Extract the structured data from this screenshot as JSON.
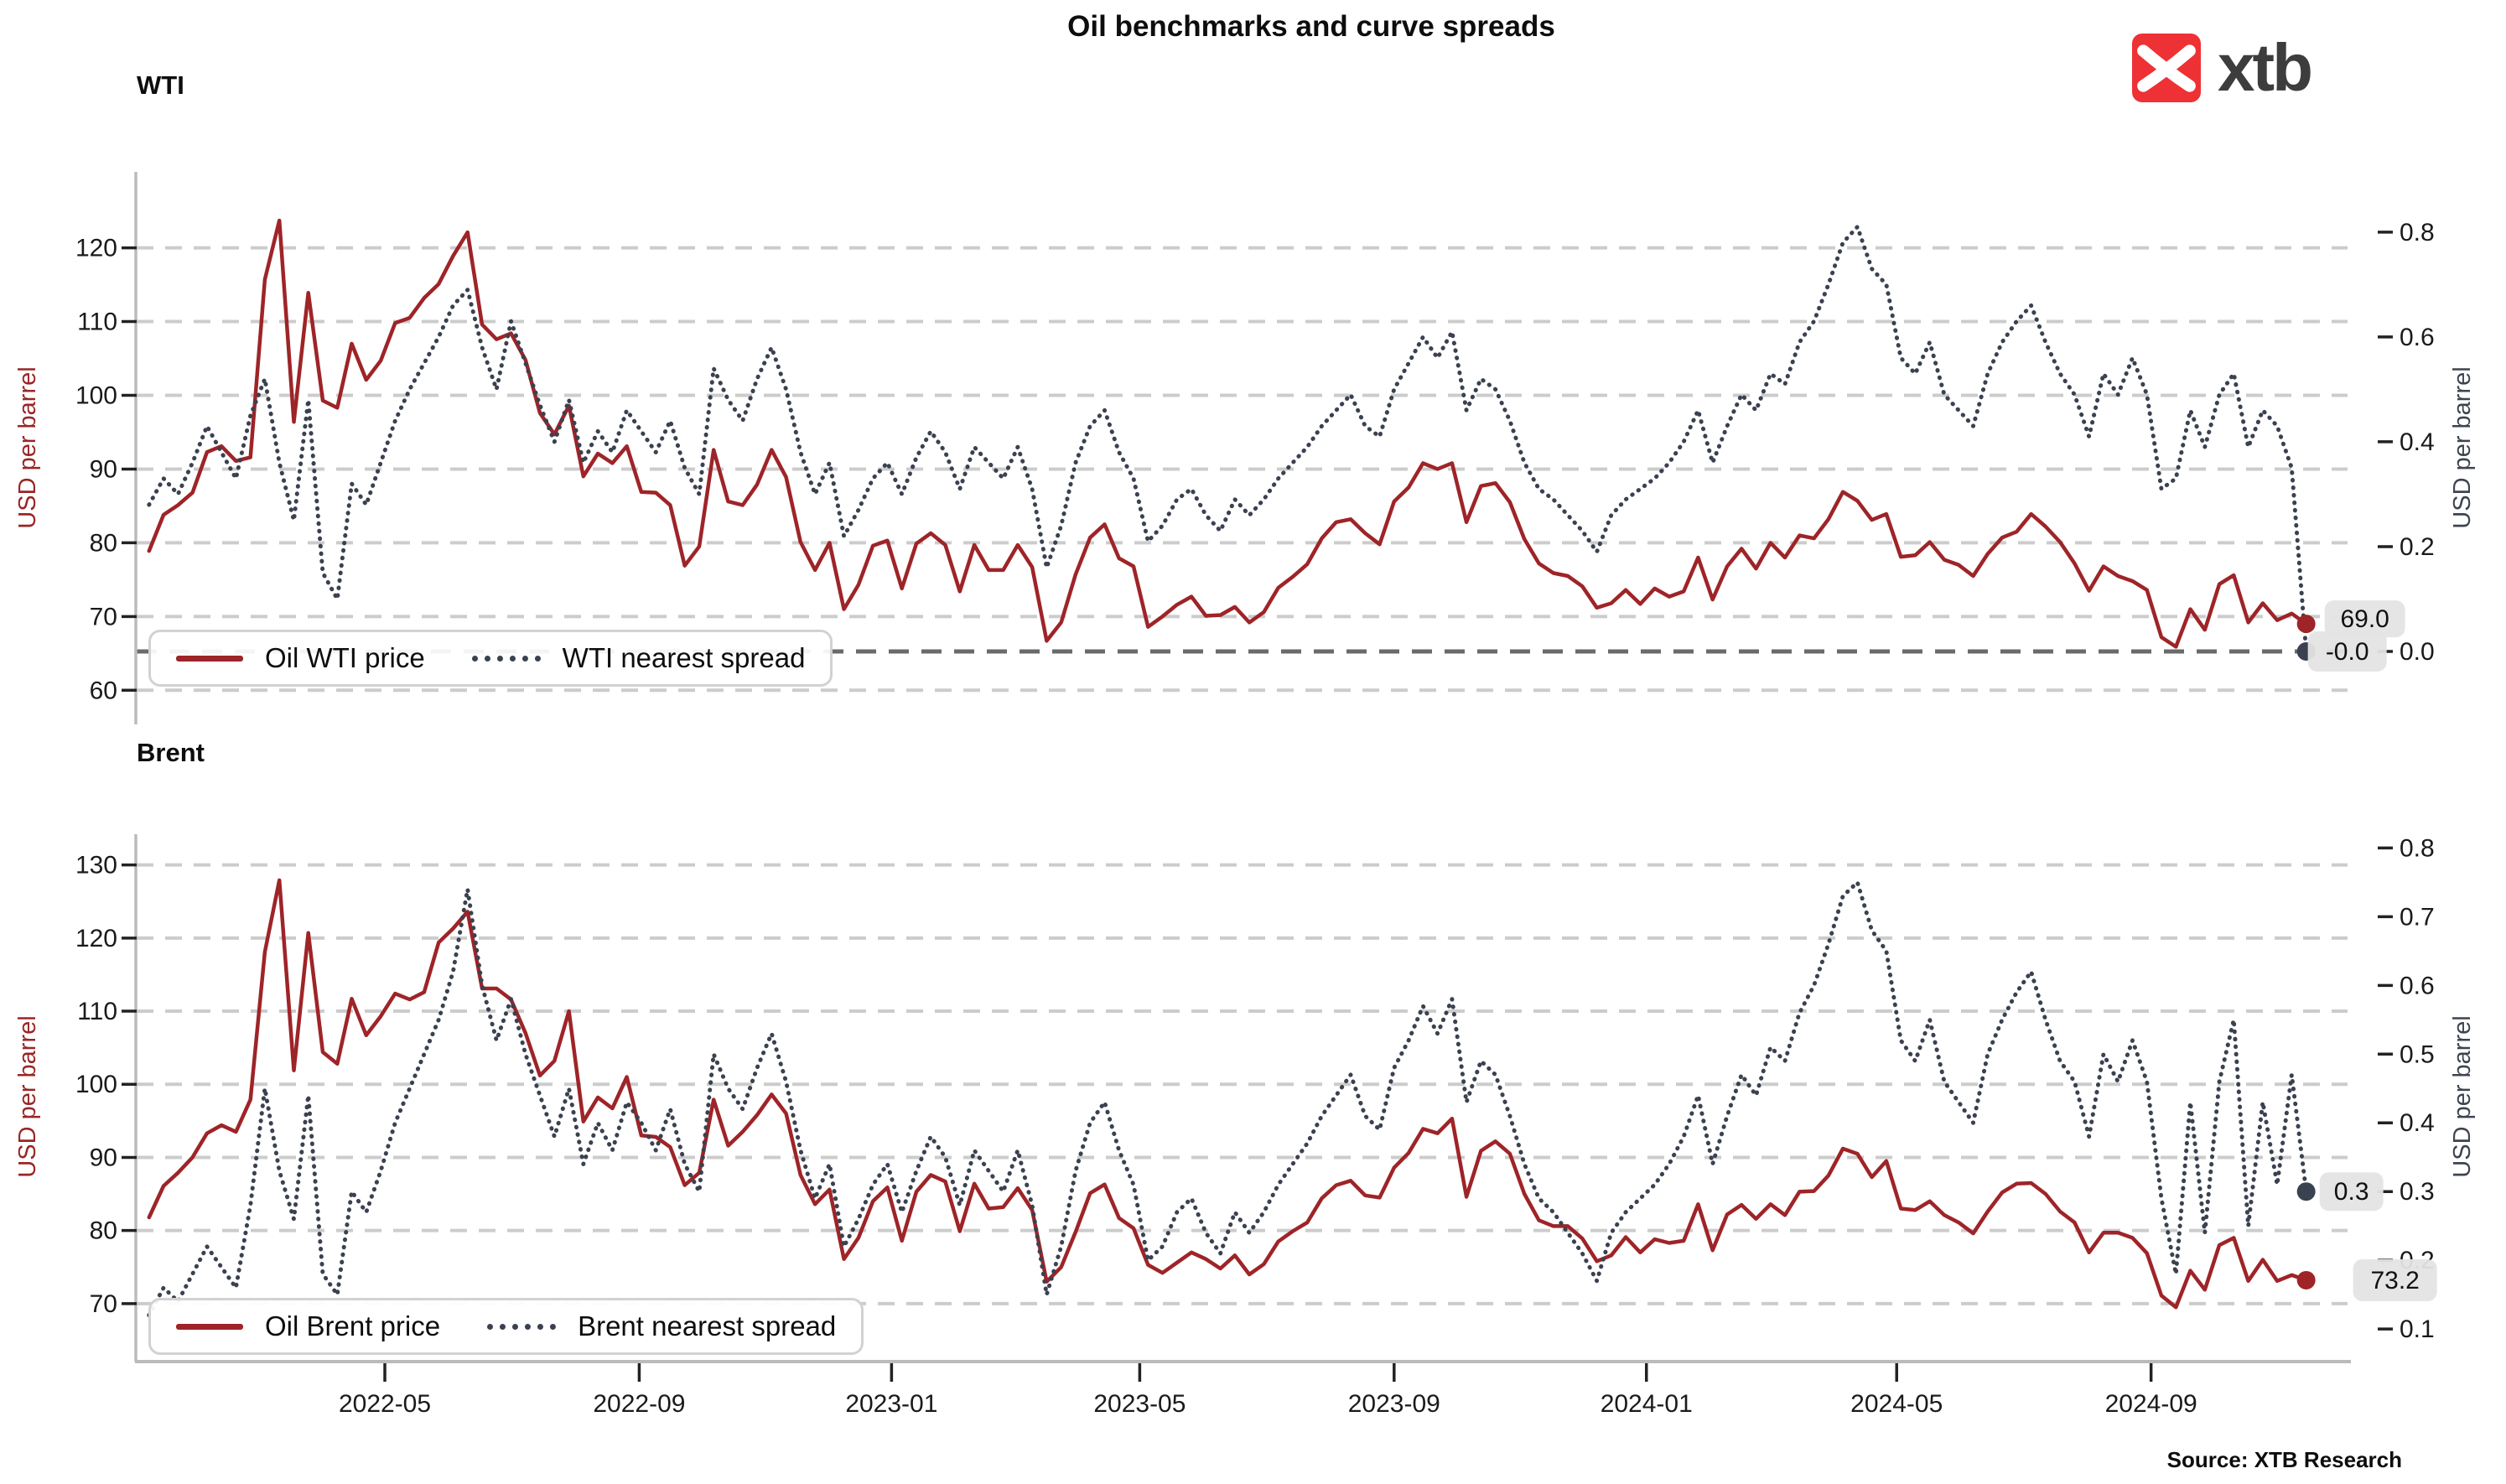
{
  "page": {
    "title": "Oil benchmarks and curve spreads",
    "source": "Source: XTB Research",
    "logo_text": "xtb"
  },
  "colors": {
    "price": "#9e2428",
    "spread": "#3a4150",
    "grid": "#cccccc",
    "zero_line": "#6a6a6a",
    "spine": "#bbbbbb",
    "tick_text": "#1a1a1a",
    "left_axis_label": "#992626",
    "right_axis_label": "#3d4450",
    "annotation_bg": "#e4e4e4",
    "annotation_text": "#111111",
    "logo_red": "#ee3134",
    "logo_text_color": "#3d3d3d"
  },
  "chart_data": [
    {
      "type": "line",
      "title": "WTI",
      "ylabel_left": "USD per barrel",
      "ylabel_right": "USD per barrel",
      "x_start": "2022-01-07",
      "x_step_days": 7,
      "xlim": [
        "2022-01-01",
        "2024-12-05"
      ],
      "x_tick_labels": [
        "2022-05",
        "2022-09",
        "2023-01",
        "2023-05",
        "2023-09",
        "2024-01",
        "2024-05",
        "2024-09"
      ],
      "show_x_tick_labels": false,
      "ylim_left": [
        55.6,
        130.3
      ],
      "ylim_right": [
        -0.136,
        0.915
      ],
      "yticks_left": [
        "120",
        "110",
        "100",
        "90",
        "80",
        "70",
        "60"
      ],
      "yticks_right": [
        "0.8",
        "0.6",
        "0.4",
        "0.2",
        "0.0"
      ],
      "grid": true,
      "zero_spread_line": true,
      "legend_position": "lower left",
      "series": [
        {
          "name": "Oil WTI price",
          "style": "solid",
          "axis": "left",
          "values": [
            78.9,
            83.8,
            85.1,
            86.8,
            92.3,
            93.1,
            91.1,
            91.6,
            115.7,
            123.7,
            96.4,
            113.9,
            99.3,
            98.3,
            107.0,
            102.1,
            104.7,
            109.8,
            110.5,
            113.2,
            115.1,
            118.9,
            122.1,
            109.6,
            107.6,
            108.4,
            104.8,
            97.6,
            94.7,
            98.6,
            89.0,
            92.1,
            90.8,
            93.1,
            86.9,
            86.8,
            85.1,
            76.9,
            79.5,
            92.6,
            85.6,
            85.1,
            87.9,
            92.6,
            88.9,
            80.1,
            76.3,
            80.0,
            71.0,
            74.3,
            79.6,
            80.3,
            73.8,
            79.9,
            81.3,
            79.7,
            73.4,
            79.7,
            76.3,
            76.3,
            79.7,
            76.7,
            66.7,
            69.2,
            75.7,
            80.7,
            82.5,
            77.9,
            76.8,
            68.6,
            70.0,
            71.6,
            72.7,
            70.1,
            70.2,
            71.3,
            69.2,
            70.6,
            73.9,
            75.4,
            77.1,
            80.6,
            82.8,
            83.2,
            81.3,
            79.8,
            85.6,
            87.5,
            90.8,
            90.0,
            90.8,
            82.8,
            87.7,
            88.1,
            85.5,
            80.5,
            77.2,
            75.9,
            75.5,
            74.1,
            71.2,
            71.8,
            73.6,
            71.7,
            73.8,
            72.7,
            73.4,
            78.0,
            72.3,
            76.8,
            79.2,
            76.5,
            80.0,
            78.0,
            81.0,
            80.6,
            83.2,
            86.9,
            85.7,
            83.1,
            83.9,
            78.1,
            78.3,
            80.1,
            77.7,
            77.0,
            75.5,
            78.5,
            80.7,
            81.5,
            83.9,
            82.2,
            80.1,
            77.2,
            73.5,
            76.8,
            75.5,
            74.8,
            73.6,
            67.2,
            65.9,
            71.0,
            68.2,
            74.4,
            75.6,
            69.2,
            71.8,
            69.5,
            70.4,
            69.0
          ]
        },
        {
          "name": "WTI nearest spread",
          "style": "dotted",
          "axis": "right",
          "values": [
            0.28,
            0.33,
            0.3,
            0.36,
            0.43,
            0.38,
            0.33,
            0.45,
            0.52,
            0.36,
            0.25,
            0.48,
            0.15,
            0.1,
            0.32,
            0.28,
            0.36,
            0.44,
            0.5,
            0.55,
            0.6,
            0.66,
            0.69,
            0.58,
            0.5,
            0.63,
            0.55,
            0.47,
            0.4,
            0.48,
            0.36,
            0.42,
            0.38,
            0.46,
            0.42,
            0.38,
            0.44,
            0.35,
            0.3,
            0.54,
            0.48,
            0.44,
            0.52,
            0.58,
            0.5,
            0.38,
            0.3,
            0.36,
            0.22,
            0.27,
            0.33,
            0.36,
            0.3,
            0.37,
            0.42,
            0.38,
            0.31,
            0.39,
            0.36,
            0.33,
            0.39,
            0.31,
            0.16,
            0.24,
            0.36,
            0.43,
            0.46,
            0.38,
            0.33,
            0.21,
            0.24,
            0.29,
            0.31,
            0.26,
            0.23,
            0.29,
            0.26,
            0.29,
            0.33,
            0.36,
            0.39,
            0.43,
            0.46,
            0.49,
            0.43,
            0.41,
            0.5,
            0.55,
            0.6,
            0.56,
            0.61,
            0.46,
            0.52,
            0.5,
            0.44,
            0.36,
            0.31,
            0.29,
            0.26,
            0.23,
            0.19,
            0.26,
            0.29,
            0.31,
            0.33,
            0.36,
            0.4,
            0.46,
            0.36,
            0.43,
            0.49,
            0.46,
            0.53,
            0.51,
            0.59,
            0.63,
            0.7,
            0.78,
            0.81,
            0.73,
            0.7,
            0.56,
            0.53,
            0.59,
            0.49,
            0.46,
            0.43,
            0.53,
            0.59,
            0.63,
            0.66,
            0.59,
            0.53,
            0.49,
            0.41,
            0.53,
            0.49,
            0.56,
            0.49,
            0.31,
            0.33,
            0.46,
            0.39,
            0.49,
            0.53,
            0.39,
            0.46,
            0.43,
            0.35,
            0.0
          ]
        }
      ],
      "end_labels": [
        {
          "text": "69.0",
          "series": 0
        },
        {
          "text": "-0.0",
          "series": 1
        }
      ]
    },
    {
      "type": "line",
      "title": "Brent",
      "ylabel_left": "USD per barrel",
      "ylabel_right": "USD per barrel",
      "x_start": "2022-01-07",
      "x_step_days": 7,
      "xlim": [
        "2022-01-01",
        "2024-12-05"
      ],
      "x_tick_labels": [
        "2022-05",
        "2022-09",
        "2023-01",
        "2023-05",
        "2023-09",
        "2024-01",
        "2024-05",
        "2024-09"
      ],
      "show_x_tick_labels": true,
      "ylim_left": [
        62.3,
        134.2
      ],
      "ylim_right": [
        0.055,
        0.82
      ],
      "yticks_left": [
        "130",
        "120",
        "110",
        "100",
        "90",
        "80",
        "70"
      ],
      "yticks_right": [
        "0.8",
        "0.7",
        "0.6",
        "0.5",
        "0.4",
        "0.3",
        "0.2",
        "0.1"
      ],
      "grid": true,
      "zero_spread_line": false,
      "legend_position": "lower left",
      "series": [
        {
          "name": "Oil Brent price",
          "style": "solid",
          "axis": "left",
          "values": [
            81.8,
            86.1,
            87.9,
            90.0,
            93.3,
            94.4,
            93.5,
            97.9,
            118.1,
            127.9,
            101.9,
            120.7,
            104.4,
            102.8,
            111.7,
            106.7,
            109.3,
            112.4,
            111.6,
            112.6,
            119.4,
            121.3,
            123.6,
            113.1,
            113.1,
            111.6,
            107.0,
            101.2,
            103.2,
            110.0,
            94.9,
            98.2,
            96.7,
            101.0,
            93.0,
            92.8,
            91.4,
            86.2,
            87.9,
            97.9,
            91.6,
            93.5,
            95.8,
            98.6,
            96.0,
            87.6,
            83.6,
            85.6,
            76.1,
            79.0,
            84.0,
            85.9,
            78.6,
            85.3,
            87.6,
            86.7,
            79.9,
            86.4,
            83.0,
            83.2,
            85.8,
            82.8,
            73.0,
            75.0,
            79.8,
            85.1,
            86.3,
            81.7,
            80.3,
            75.3,
            74.2,
            75.6,
            77.0,
            76.1,
            74.8,
            76.6,
            74.0,
            75.4,
            78.5,
            79.9,
            81.1,
            84.4,
            86.2,
            86.8,
            84.8,
            84.5,
            88.6,
            90.6,
            93.9,
            93.3,
            95.3,
            84.6,
            90.9,
            92.2,
            90.5,
            85.0,
            81.4,
            80.6,
            80.6,
            78.9,
            75.8,
            76.6,
            79.1,
            77.0,
            78.8,
            78.3,
            78.6,
            83.6,
            77.3,
            82.2,
            83.5,
            81.6,
            83.6,
            82.1,
            85.3,
            85.4,
            87.5,
            91.2,
            90.5,
            87.3,
            89.5,
            83.0,
            82.8,
            84.0,
            82.1,
            81.1,
            79.6,
            82.6,
            85.2,
            86.4,
            86.5,
            85.0,
            82.6,
            81.1,
            77.0,
            79.7,
            79.7,
            79.0,
            76.9,
            71.1,
            69.5,
            74.5,
            71.9,
            78.0,
            79.0,
            73.1,
            76.0,
            73.1,
            73.9,
            73.2
          ]
        },
        {
          "name": "Brent nearest spread",
          "style": "dotted",
          "axis": "right",
          "values": [
            0.12,
            0.16,
            0.14,
            0.18,
            0.22,
            0.19,
            0.16,
            0.28,
            0.45,
            0.33,
            0.26,
            0.44,
            0.18,
            0.15,
            0.3,
            0.27,
            0.33,
            0.4,
            0.45,
            0.5,
            0.55,
            0.62,
            0.74,
            0.6,
            0.52,
            0.58,
            0.5,
            0.44,
            0.38,
            0.45,
            0.34,
            0.4,
            0.36,
            0.43,
            0.4,
            0.36,
            0.42,
            0.34,
            0.3,
            0.5,
            0.45,
            0.42,
            0.48,
            0.53,
            0.46,
            0.36,
            0.29,
            0.34,
            0.22,
            0.26,
            0.31,
            0.34,
            0.27,
            0.33,
            0.38,
            0.35,
            0.28,
            0.36,
            0.33,
            0.3,
            0.36,
            0.28,
            0.15,
            0.22,
            0.33,
            0.4,
            0.43,
            0.36,
            0.31,
            0.2,
            0.22,
            0.27,
            0.29,
            0.24,
            0.21,
            0.27,
            0.24,
            0.27,
            0.31,
            0.34,
            0.37,
            0.41,
            0.44,
            0.47,
            0.41,
            0.39,
            0.48,
            0.52,
            0.57,
            0.53,
            0.58,
            0.43,
            0.49,
            0.47,
            0.41,
            0.34,
            0.29,
            0.27,
            0.24,
            0.21,
            0.17,
            0.24,
            0.27,
            0.29,
            0.31,
            0.34,
            0.38,
            0.44,
            0.34,
            0.41,
            0.47,
            0.44,
            0.51,
            0.49,
            0.56,
            0.6,
            0.66,
            0.73,
            0.75,
            0.68,
            0.65,
            0.52,
            0.49,
            0.55,
            0.46,
            0.43,
            0.4,
            0.5,
            0.55,
            0.59,
            0.62,
            0.55,
            0.49,
            0.46,
            0.38,
            0.5,
            0.46,
            0.52,
            0.46,
            0.29,
            0.18,
            0.43,
            0.24,
            0.46,
            0.55,
            0.25,
            0.43,
            0.31,
            0.47,
            0.3
          ]
        }
      ],
      "end_labels": [
        {
          "text": "0.3",
          "series": 1
        },
        {
          "text": "73.2",
          "series": 0
        }
      ]
    }
  ]
}
